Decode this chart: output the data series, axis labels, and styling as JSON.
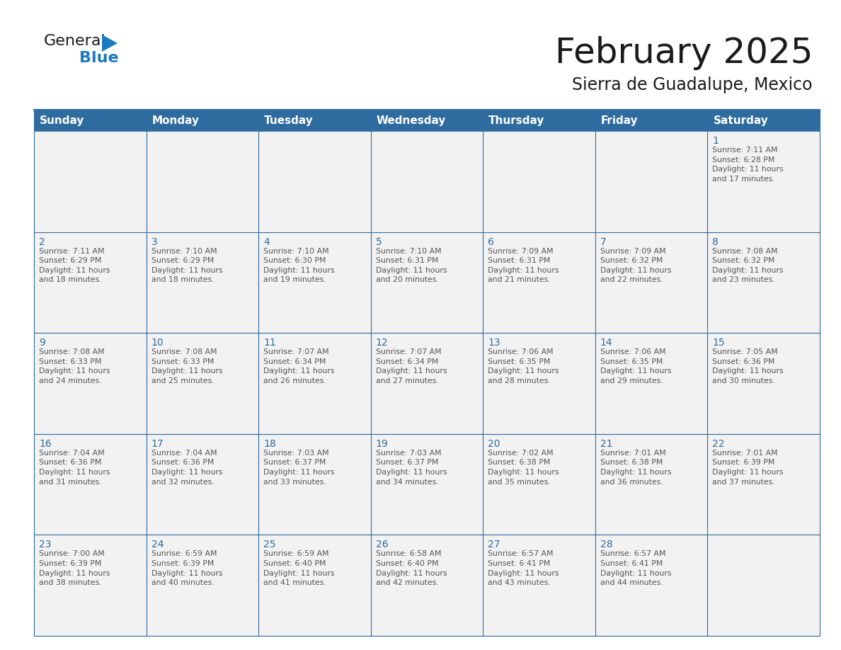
{
  "title": "February 2025",
  "subtitle": "Sierra de Guadalupe, Mexico",
  "header_bg": "#2E6B9E",
  "header_text_color": "#FFFFFF",
  "cell_bg": "#F2F2F2",
  "cell_bg_white": "#FFFFFF",
  "text_color": "#555555",
  "day_num_color": "#2E6B9E",
  "grid_line_color": "#2E6B9E",
  "days_of_week": [
    "Sunday",
    "Monday",
    "Tuesday",
    "Wednesday",
    "Thursday",
    "Friday",
    "Saturday"
  ],
  "calendar_data": [
    [
      null,
      null,
      null,
      null,
      null,
      null,
      {
        "day": "1",
        "sunrise": "7:11 AM",
        "sunset": "6:28 PM",
        "daylight": "11 hours\nand 17 minutes."
      }
    ],
    [
      {
        "day": "2",
        "sunrise": "7:11 AM",
        "sunset": "6:29 PM",
        "daylight": "11 hours\nand 18 minutes."
      },
      {
        "day": "3",
        "sunrise": "7:10 AM",
        "sunset": "6:29 PM",
        "daylight": "11 hours\nand 18 minutes."
      },
      {
        "day": "4",
        "sunrise": "7:10 AM",
        "sunset": "6:30 PM",
        "daylight": "11 hours\nand 19 minutes."
      },
      {
        "day": "5",
        "sunrise": "7:10 AM",
        "sunset": "6:31 PM",
        "daylight": "11 hours\nand 20 minutes."
      },
      {
        "day": "6",
        "sunrise": "7:09 AM",
        "sunset": "6:31 PM",
        "daylight": "11 hours\nand 21 minutes."
      },
      {
        "day": "7",
        "sunrise": "7:09 AM",
        "sunset": "6:32 PM",
        "daylight": "11 hours\nand 22 minutes."
      },
      {
        "day": "8",
        "sunrise": "7:08 AM",
        "sunset": "6:32 PM",
        "daylight": "11 hours\nand 23 minutes."
      }
    ],
    [
      {
        "day": "9",
        "sunrise": "7:08 AM",
        "sunset": "6:33 PM",
        "daylight": "11 hours\nand 24 minutes."
      },
      {
        "day": "10",
        "sunrise": "7:08 AM",
        "sunset": "6:33 PM",
        "daylight": "11 hours\nand 25 minutes."
      },
      {
        "day": "11",
        "sunrise": "7:07 AM",
        "sunset": "6:34 PM",
        "daylight": "11 hours\nand 26 minutes."
      },
      {
        "day": "12",
        "sunrise": "7:07 AM",
        "sunset": "6:34 PM",
        "daylight": "11 hours\nand 27 minutes."
      },
      {
        "day": "13",
        "sunrise": "7:06 AM",
        "sunset": "6:35 PM",
        "daylight": "11 hours\nand 28 minutes."
      },
      {
        "day": "14",
        "sunrise": "7:06 AM",
        "sunset": "6:35 PM",
        "daylight": "11 hours\nand 29 minutes."
      },
      {
        "day": "15",
        "sunrise": "7:05 AM",
        "sunset": "6:36 PM",
        "daylight": "11 hours\nand 30 minutes."
      }
    ],
    [
      {
        "day": "16",
        "sunrise": "7:04 AM",
        "sunset": "6:36 PM",
        "daylight": "11 hours\nand 31 minutes."
      },
      {
        "day": "17",
        "sunrise": "7:04 AM",
        "sunset": "6:36 PM",
        "daylight": "11 hours\nand 32 minutes."
      },
      {
        "day": "18",
        "sunrise": "7:03 AM",
        "sunset": "6:37 PM",
        "daylight": "11 hours\nand 33 minutes."
      },
      {
        "day": "19",
        "sunrise": "7:03 AM",
        "sunset": "6:37 PM",
        "daylight": "11 hours\nand 34 minutes."
      },
      {
        "day": "20",
        "sunrise": "7:02 AM",
        "sunset": "6:38 PM",
        "daylight": "11 hours\nand 35 minutes."
      },
      {
        "day": "21",
        "sunrise": "7:01 AM",
        "sunset": "6:38 PM",
        "daylight": "11 hours\nand 36 minutes."
      },
      {
        "day": "22",
        "sunrise": "7:01 AM",
        "sunset": "6:39 PM",
        "daylight": "11 hours\nand 37 minutes."
      }
    ],
    [
      {
        "day": "23",
        "sunrise": "7:00 AM",
        "sunset": "6:39 PM",
        "daylight": "11 hours\nand 38 minutes."
      },
      {
        "day": "24",
        "sunrise": "6:59 AM",
        "sunset": "6:39 PM",
        "daylight": "11 hours\nand 40 minutes."
      },
      {
        "day": "25",
        "sunrise": "6:59 AM",
        "sunset": "6:40 PM",
        "daylight": "11 hours\nand 41 minutes."
      },
      {
        "day": "26",
        "sunrise": "6:58 AM",
        "sunset": "6:40 PM",
        "daylight": "11 hours\nand 42 minutes."
      },
      {
        "day": "27",
        "sunrise": "6:57 AM",
        "sunset": "6:41 PM",
        "daylight": "11 hours\nand 43 minutes."
      },
      {
        "day": "28",
        "sunrise": "6:57 AM",
        "sunset": "6:41 PM",
        "daylight": "11 hours\nand 44 minutes."
      },
      null
    ]
  ],
  "logo_text_general": "General",
  "logo_text_blue": "Blue",
  "logo_color_general": "#1a1a1a",
  "logo_color_blue": "#1a7abf",
  "logo_triangle_color": "#1a7abf",
  "title_fontsize": 36,
  "subtitle_fontsize": 17,
  "header_fontsize": 11,
  "day_num_fontsize": 10,
  "cell_text_fontsize": 7.8
}
